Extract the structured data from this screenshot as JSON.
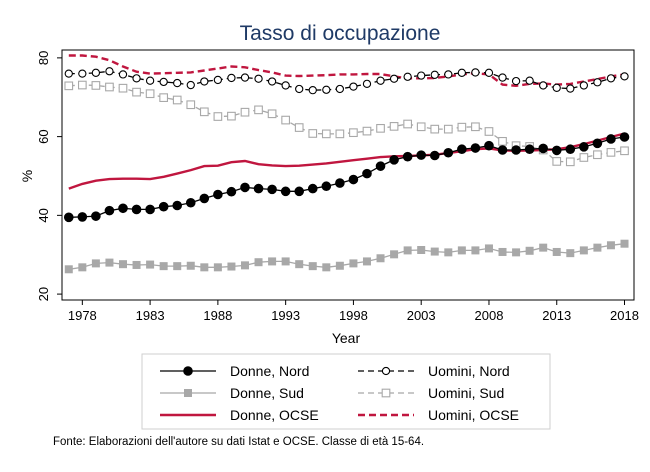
{
  "chart_data": {
    "type": "line",
    "title": "Tasso di occupazione",
    "xlabel": "Year",
    "ylabel": "%",
    "xlim": [
      1976.5,
      2018.7
    ],
    "ylim": [
      18.5,
      82
    ],
    "xticks": [
      1978,
      1983,
      1988,
      1993,
      1998,
      2003,
      2008,
      2013,
      2018
    ],
    "yticks": [
      20,
      40,
      60,
      80
    ],
    "legend_position": "bottom",
    "x": [
      1977,
      1978,
      1979,
      1980,
      1981,
      1982,
      1983,
      1984,
      1985,
      1986,
      1987,
      1988,
      1989,
      1990,
      1991,
      1992,
      1993,
      1994,
      1995,
      1996,
      1997,
      1998,
      1999,
      2000,
      2001,
      2002,
      2003,
      2004,
      2005,
      2006,
      2007,
      2008,
      2009,
      2010,
      2011,
      2012,
      2013,
      2014,
      2015,
      2016,
      2017,
      2018
    ],
    "series": [
      {
        "name": "Donne, Nord",
        "color": "#000000",
        "style": "solid",
        "marker": "filled-circle",
        "values": [
          39.5,
          39.6,
          39.8,
          41.2,
          41.8,
          41.5,
          41.5,
          42.2,
          42.5,
          43.2,
          44.3,
          45.3,
          46.0,
          47.1,
          46.8,
          46.6,
          46.1,
          46.1,
          46.8,
          47.4,
          48.2,
          49.1,
          50.6,
          52.5,
          54.1,
          54.9,
          55.3,
          55.2,
          55.9,
          56.8,
          57.1,
          57.7,
          56.6,
          56.6,
          56.8,
          57.0,
          56.5,
          56.8,
          57.4,
          58.3,
          59.4,
          59.9
        ]
      },
      {
        "name": "Uomini, Nord",
        "color": "#000000",
        "style": "dash",
        "marker": "hollow-circle",
        "values": [
          76.0,
          76.0,
          76.2,
          76.6,
          75.8,
          74.8,
          74.2,
          73.9,
          73.6,
          73.1,
          74.0,
          74.4,
          74.9,
          75.0,
          74.7,
          74.0,
          73.0,
          72.1,
          71.8,
          71.9,
          72.1,
          72.7,
          73.4,
          74.2,
          74.7,
          75.2,
          75.5,
          75.7,
          75.8,
          76.2,
          76.3,
          76.2,
          75.0,
          74.1,
          74.2,
          73.0,
          72.4,
          72.2,
          73.0,
          73.8,
          74.8,
          75.3
        ]
      },
      {
        "name": "Donne, Sud",
        "color": "#a8a8a8",
        "style": "solid",
        "marker": "filled-square",
        "values": [
          26.3,
          26.8,
          27.8,
          28.0,
          27.6,
          27.4,
          27.5,
          27.1,
          27.1,
          27.2,
          26.8,
          26.8,
          27.0,
          27.3,
          28.1,
          28.3,
          28.3,
          27.6,
          27.1,
          26.8,
          27.2,
          27.8,
          28.3,
          29.1,
          30.1,
          31.1,
          31.2,
          30.8,
          30.6,
          31.1,
          31.1,
          31.6,
          30.7,
          30.6,
          31.0,
          31.8,
          30.7,
          30.4,
          31.1,
          31.8,
          32.4,
          32.8
        ]
      },
      {
        "name": "Uomini, Sud",
        "color": "#a8a8a8",
        "style": "dash",
        "marker": "hollow-square",
        "values": [
          72.9,
          73.1,
          73.0,
          72.6,
          72.3,
          71.3,
          70.9,
          69.9,
          69.3,
          68.1,
          66.3,
          65.1,
          65.2,
          66.2,
          66.8,
          65.8,
          64.2,
          62.3,
          60.8,
          60.7,
          60.7,
          61.0,
          61.4,
          62.1,
          62.6,
          63.2,
          62.5,
          61.9,
          61.9,
          62.4,
          62.5,
          61.3,
          58.8,
          57.7,
          57.5,
          56.6,
          53.7,
          53.6,
          54.7,
          55.4,
          56.0,
          56.4
        ]
      },
      {
        "name": "Donne, OCSE",
        "color": "#c0163f",
        "style": "solid",
        "marker": "none",
        "values": [
          46.8,
          48.0,
          48.8,
          49.2,
          49.3,
          49.3,
          49.2,
          49.8,
          50.6,
          51.5,
          52.5,
          52.6,
          53.5,
          53.8,
          53.0,
          52.7,
          52.5,
          52.6,
          52.9,
          53.2,
          53.6,
          54.0,
          54.4,
          54.8,
          55.0,
          55.1,
          55.2,
          55.4,
          55.8,
          56.3,
          56.8,
          57.0,
          56.5,
          56.4,
          56.5,
          56.6,
          56.8,
          57.3,
          58.1,
          59.0,
          59.9,
          60.8
        ]
      },
      {
        "name": "Uomini, OCSE",
        "color": "#c0163f",
        "style": "dash",
        "marker": "none",
        "values": [
          80.6,
          80.6,
          80.3,
          79.4,
          77.8,
          76.5,
          76.0,
          76.1,
          76.2,
          76.3,
          76.8,
          77.3,
          77.8,
          77.6,
          76.9,
          76.3,
          75.5,
          75.4,
          75.5,
          75.6,
          75.8,
          75.8,
          75.9,
          75.9,
          75.3,
          74.8,
          74.8,
          74.9,
          75.3,
          75.8,
          76.1,
          75.8,
          73.2,
          72.9,
          73.4,
          73.5,
          73.2,
          73.4,
          74.0,
          74.6,
          75.3,
          75.8
        ]
      }
    ]
  },
  "legend": {
    "items": [
      "Donne, Nord",
      "Uomini, Nord",
      "Donne, Sud",
      "Uomini, Sud",
      "Donne, OCSE",
      "Uomini, OCSE"
    ]
  },
  "footer": {
    "source": "Fonte: Elaborazioni dell'autore su dati Istat e OCSE. Classe di età 15-64."
  }
}
